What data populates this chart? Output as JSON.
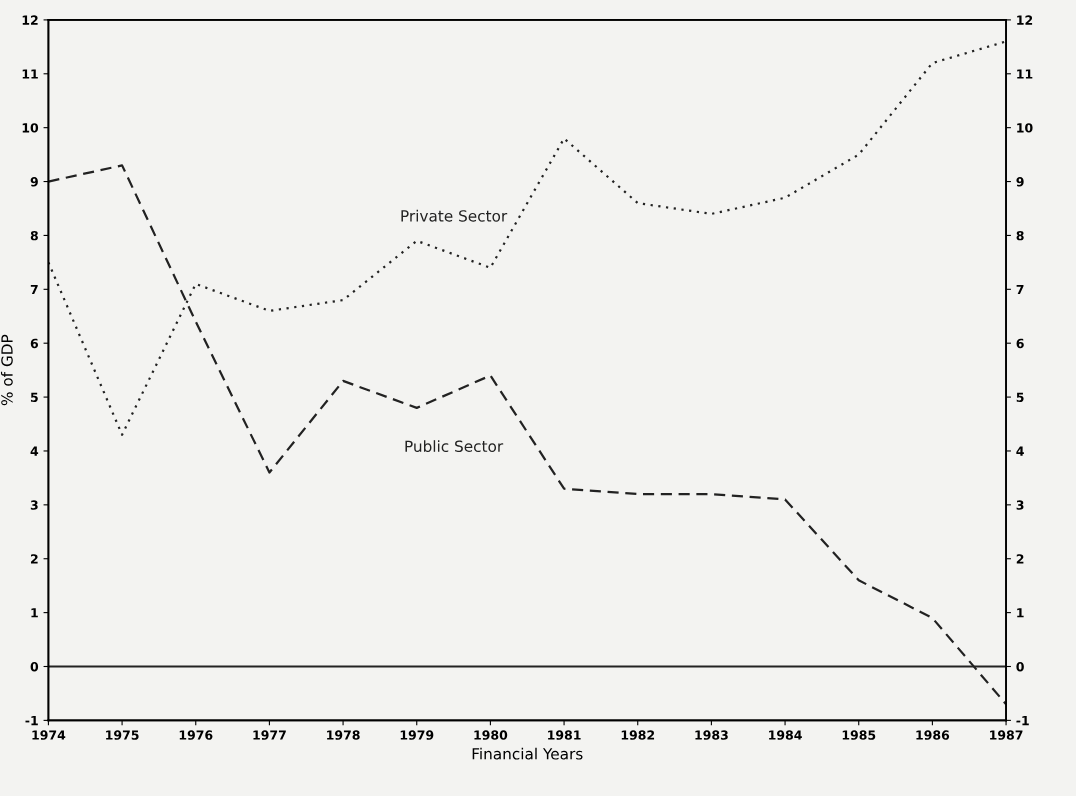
{
  "chart_data": {
    "type": "line",
    "xlabel": "Financial Years",
    "ylabel": "% of GDP",
    "x": [
      1974,
      1975,
      1976,
      1977,
      1978,
      1979,
      1980,
      1981,
      1982,
      1983,
      1984,
      1985,
      1986,
      1987
    ],
    "series": [
      {
        "name": "Private Sector",
        "color": "#222222",
        "line_style": "dotted",
        "values": [
          7.5,
          4.3,
          7.1,
          6.6,
          6.8,
          7.9,
          7.4,
          9.8,
          8.6,
          8.4,
          8.7,
          9.5,
          11.2,
          11.6
        ]
      },
      {
        "name": "Public Sector",
        "color": "#222222",
        "line_style": "dashed",
        "values": [
          9.0,
          9.3,
          6.4,
          3.6,
          5.3,
          4.8,
          5.4,
          3.3,
          3.2,
          3.2,
          3.1,
          1.6,
          0.9,
          -0.7
        ]
      }
    ],
    "xlim": [
      1974,
      1987
    ],
    "xticks": [
      1974,
      1975,
      1976,
      1977,
      1978,
      1979,
      1980,
      1981,
      1982,
      1983,
      1984,
      1985,
      1986,
      1987
    ],
    "ylim": [
      -1,
      12
    ],
    "yticks": [
      -1,
      0,
      1,
      2,
      3,
      4,
      5,
      6,
      7,
      8,
      9,
      10,
      11,
      12
    ],
    "y2lim": [
      -1,
      12
    ],
    "y2ticks": [
      -1,
      0,
      1,
      2,
      3,
      4,
      5,
      6,
      7,
      8,
      9,
      10,
      11,
      12
    ],
    "ref_lines": [
      {
        "axis": "y",
        "value": 0,
        "color": "#222222",
        "line_style": "solid"
      }
    ],
    "grid": false,
    "legend": false,
    "marker": "none"
  }
}
